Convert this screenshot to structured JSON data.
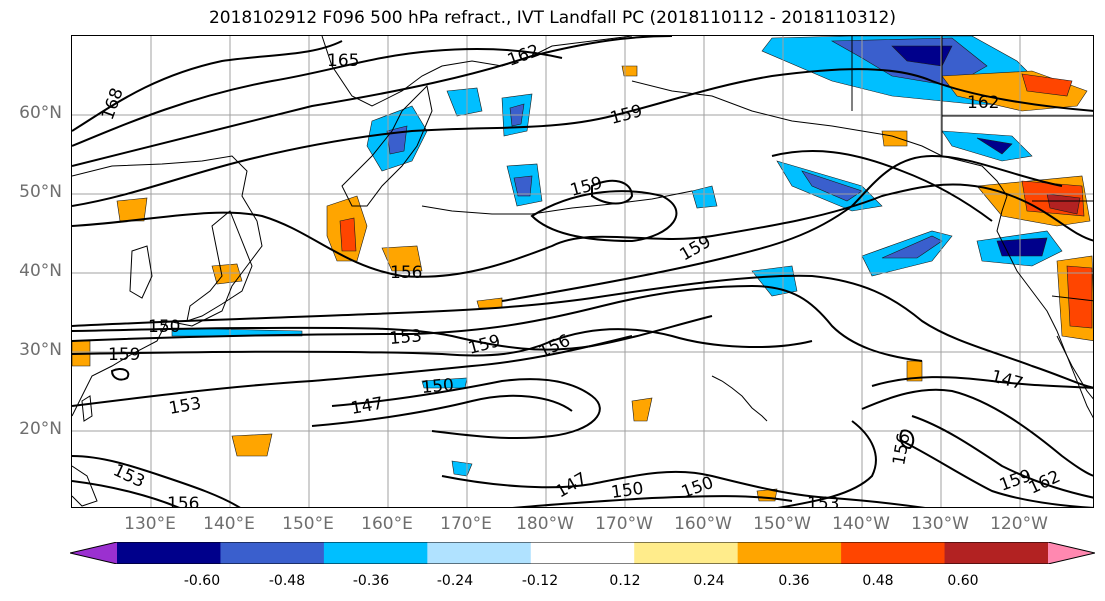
{
  "title": "2018102912 F096 500 hPa refract., IVT Landfall PC (2018110112 - 2018110312)",
  "lat_labels": [
    "60°N",
    "50°N",
    "40°N",
    "30°N",
    "20°N"
  ],
  "lon_labels": [
    "130°E",
    "140°E",
    "150°E",
    "160°E",
    "170°E",
    "180°W",
    "170°W",
    "160°W",
    "150°W",
    "140°W",
    "130°W",
    "120°W"
  ],
  "contour_labels": [
    "165",
    "162",
    "168",
    "159",
    "159",
    "159",
    "162",
    "156",
    "150",
    "153",
    "159",
    "159",
    "156",
    "153",
    "150",
    "147",
    "147",
    "150",
    "150",
    "153",
    "156",
    "153",
    "156",
    "147",
    "159",
    "162"
  ],
  "colorbar": {
    "ticks": [
      "-0.60",
      "-0.48",
      "-0.36",
      "-0.24",
      "-0.12",
      "0.12",
      "0.24",
      "0.36",
      "0.48",
      "0.60"
    ],
    "colors": [
      "#9b30d0",
      "#00008b",
      "#3a5fcd",
      "#00bfff",
      "#b0e2ff",
      "#ffffff",
      "#ffec8b",
      "#ffa500",
      "#ff4500",
      "#b22222",
      "#ff88b0"
    ]
  }
}
